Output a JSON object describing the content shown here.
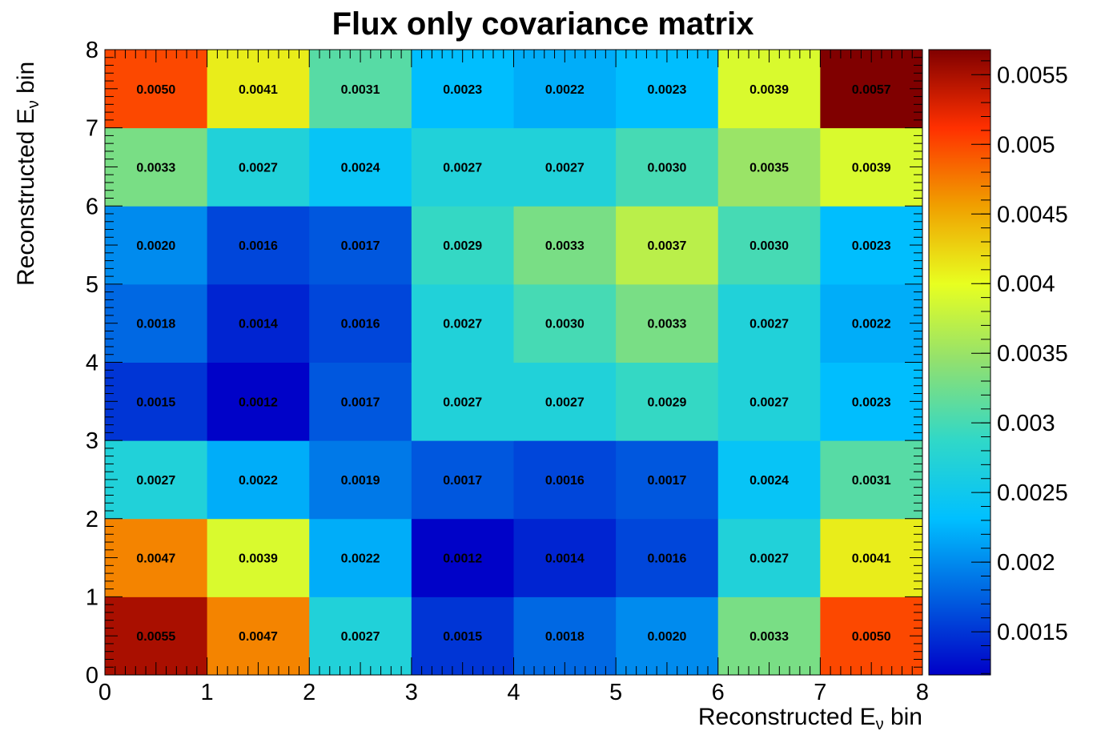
{
  "chart_data": {
    "type": "heatmap",
    "title": "Flux only covariance matrix",
    "xlabel": "Reconstructed E",
    "ylabel": "Reconstructed E",
    "label_subscript": "ν",
    "label_suffix": " bin",
    "x_ticks": [
      "0",
      "1",
      "2",
      "3",
      "4",
      "5",
      "6",
      "7",
      "8"
    ],
    "y_ticks": [
      "0",
      "1",
      "2",
      "3",
      "4",
      "5",
      "6",
      "7",
      "8"
    ],
    "xlim": [
      0,
      8
    ],
    "ylim": [
      0,
      8
    ],
    "zlim": [
      0.00119,
      0.00568
    ],
    "colorbar_ticks": [
      "0.0015",
      "0.002",
      "0.0025",
      "0.003",
      "0.0035",
      "0.004",
      "0.0045",
      "0.005",
      "0.0055"
    ],
    "colorbar_tick_values": [
      0.0015,
      0.002,
      0.0025,
      0.003,
      0.0035,
      0.004,
      0.0045,
      0.005,
      0.0055
    ],
    "rows_bottom_to_top": [
      [
        "0.0055",
        "0.0047",
        "0.0027",
        "0.0015",
        "0.0018",
        "0.0020",
        "0.0033",
        "0.0050"
      ],
      [
        "0.0047",
        "0.0039",
        "0.0022",
        "0.0012",
        "0.0014",
        "0.0016",
        "0.0027",
        "0.0041"
      ],
      [
        "0.0027",
        "0.0022",
        "0.0019",
        "0.0017",
        "0.0016",
        "0.0017",
        "0.0024",
        "0.0031"
      ],
      [
        "0.0015",
        "0.0012",
        "0.0017",
        "0.0027",
        "0.0027",
        "0.0029",
        "0.0027",
        "0.0023"
      ],
      [
        "0.0018",
        "0.0014",
        "0.0016",
        "0.0027",
        "0.0030",
        "0.0033",
        "0.0027",
        "0.0022"
      ],
      [
        "0.0020",
        "0.0016",
        "0.0017",
        "0.0029",
        "0.0033",
        "0.0037",
        "0.0030",
        "0.0023"
      ],
      [
        "0.0033",
        "0.0027",
        "0.0024",
        "0.0027",
        "0.0027",
        "0.0030",
        "0.0035",
        "0.0039"
      ],
      [
        "0.0050",
        "0.0041",
        "0.0031",
        "0.0023",
        "0.0022",
        "0.0023",
        "0.0039",
        "0.0057"
      ]
    ],
    "colormap": [
      "#0000c8",
      "#0060e0",
      "#00c0ff",
      "#30d8c8",
      "#90e070",
      "#e8ff20",
      "#f0a000",
      "#ff3000",
      "#800000"
    ],
    "grid": false,
    "legend": "colorbar-right"
  }
}
